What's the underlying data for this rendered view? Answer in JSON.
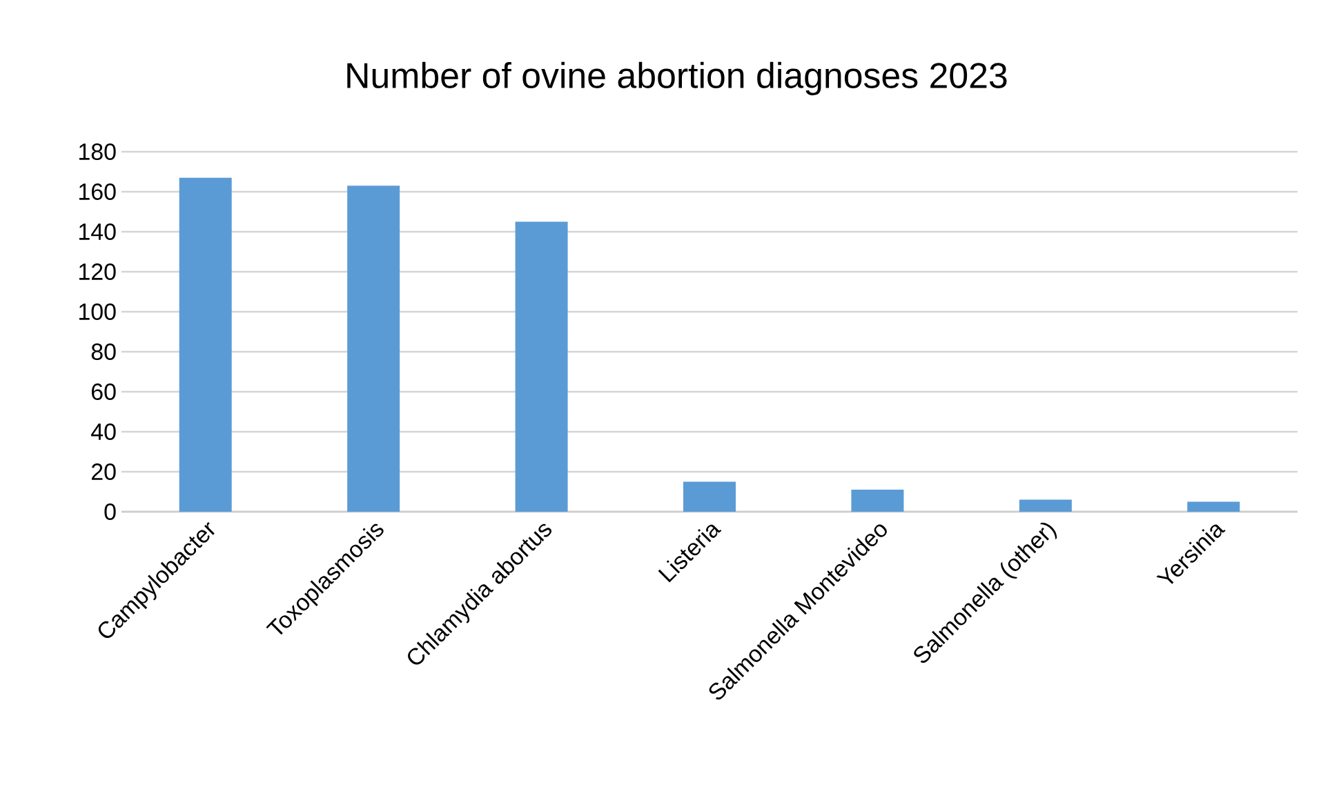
{
  "chart_data": {
    "type": "bar",
    "title": "Number of ovine abortion diagnoses 2023",
    "categories": [
      "Campylobacter",
      "Toxoplasmosis",
      "Chlamydia abortus",
      "Listeria",
      "Salmonella Montevideo",
      "Salmonella (other)",
      "Yersinia"
    ],
    "values": [
      167,
      163,
      145,
      15,
      11,
      6,
      5
    ],
    "color": "#5b9bd5",
    "ylim": [
      0,
      180
    ],
    "yticks": [
      0,
      20,
      40,
      60,
      80,
      100,
      120,
      140,
      160,
      180
    ],
    "grid": "y"
  }
}
